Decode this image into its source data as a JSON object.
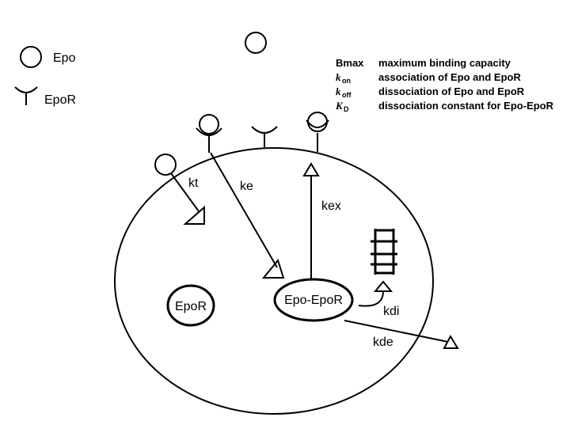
{
  "legend_symbols": {
    "epo": "Epo",
    "epor": "EpoR"
  },
  "definitions": [
    {
      "symbol": "Bmax",
      "subscript": "",
      "italic": false,
      "description": "maximum binding capacity"
    },
    {
      "symbol": "k",
      "subscript": "on",
      "italic": true,
      "description": "association of Epo and EpoR"
    },
    {
      "symbol": "k",
      "subscript": "off",
      "italic": true,
      "description": "dissociation of Epo and EpoR"
    },
    {
      "symbol": "K",
      "subscript": "D",
      "italic": true,
      "description": "dissociation constant for Epo-EpoR"
    }
  ],
  "cell": {
    "free_receptor_label": "EpoR",
    "complex_label": "Epo-EpoR"
  },
  "rates": {
    "kt": "kt",
    "ke": "ke",
    "kex": "kex",
    "kdi": "kdi",
    "kde": "kde"
  }
}
